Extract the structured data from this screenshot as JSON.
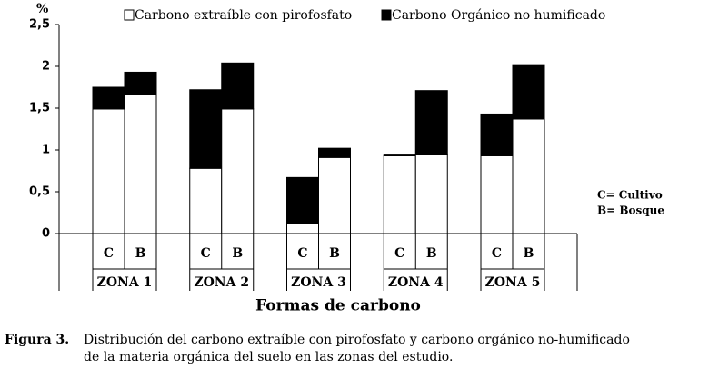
{
  "chart_data": {
    "type": "stacked_bar",
    "y_label": "%",
    "x_label": "Formas de carbono",
    "categories": [
      "C",
      "B",
      "C",
      "B",
      "C",
      "B",
      "C",
      "B",
      "C",
      "B"
    ],
    "groups": [
      "ZONA 1",
      "ZONA 2",
      "ZONA 3",
      "ZONA 4",
      "ZONA 5"
    ],
    "series": [
      {
        "name": "Carbono extraíble con pirofosfato",
        "color": "#ffffff",
        "values": [
          1.49,
          1.66,
          0.78,
          1.49,
          0.12,
          0.91,
          0.93,
          0.95,
          0.93,
          1.37
        ]
      },
      {
        "name": "Carbono Orgánico no humificado",
        "color": "#000000",
        "values": [
          0.26,
          0.27,
          0.94,
          0.55,
          0.55,
          0.11,
          0.02,
          0.76,
          0.5,
          0.65
        ]
      }
    ],
    "ylim": [
      0,
      2.5
    ],
    "yticks": [
      0,
      {
        "value": 0.5,
        "label": "0,5"
      },
      1,
      {
        "value": 1.5,
        "label": "1,5"
      },
      2,
      {
        "value": 2.5,
        "label": "2,5"
      }
    ],
    "annotations": [
      "C= Cultivo",
      "B= Bosque"
    ]
  },
  "caption": {
    "label": "Figura 3.",
    "lines": [
      "Distribución del carbono extraíble con pirofosfato y carbono orgánico no-humificado",
      "de la materia orgánica del suelo en las zonas del estudio."
    ]
  }
}
